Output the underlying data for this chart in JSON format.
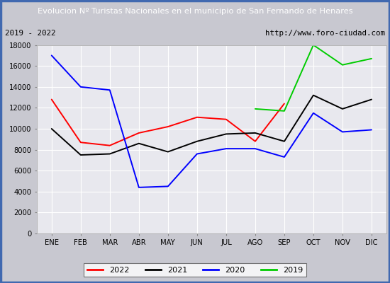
{
  "title": "Evolucion Nº Turistas Nacionales en el municipio de San Fernando de Henares",
  "subtitle_left": "2019 - 2022",
  "subtitle_right": "http://www.foro-ciudad.com",
  "months": [
    "ENE",
    "FEB",
    "MAR",
    "ABR",
    "MAY",
    "JUN",
    "JUL",
    "AGO",
    "SEP",
    "OCT",
    "NOV",
    "DIC"
  ],
  "series": {
    "2022": [
      12800,
      8700,
      8400,
      9600,
      10200,
      11100,
      10900,
      8800,
      12400,
      null,
      null,
      null
    ],
    "2021": [
      10000,
      7500,
      7600,
      8600,
      7800,
      8800,
      9500,
      9600,
      8800,
      13200,
      11900,
      12800
    ],
    "2020": [
      17000,
      14000,
      13700,
      4400,
      4500,
      7600,
      8100,
      8100,
      7300,
      11500,
      9700,
      9900
    ],
    "2019": [
      null,
      null,
      null,
      null,
      null,
      null,
      null,
      11900,
      11700,
      18000,
      16100,
      16700
    ]
  },
  "colors": {
    "2022": "#ff0000",
    "2021": "#000000",
    "2020": "#0000ff",
    "2019": "#00cc00"
  },
  "ylim": [
    0,
    18000
  ],
  "yticks": [
    0,
    2000,
    4000,
    6000,
    8000,
    10000,
    12000,
    14000,
    16000,
    18000
  ],
  "title_bg_color": "#4169b0",
  "title_text_color": "#ffffff",
  "plot_bg_color": "#e8e8ee",
  "outer_bg_color": "#c8c8d0",
  "subtitle_bg_color": "#e8e8ee",
  "grid_color": "#ffffff",
  "border_color": "#4169b0"
}
